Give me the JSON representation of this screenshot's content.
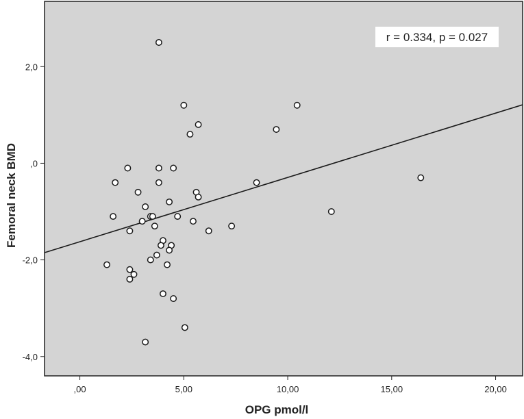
{
  "chart_data": {
    "type": "scatter",
    "xlabel": "OPG pmol/l",
    "ylabel": "Femoral neck BMD",
    "xlim": [
      -1.7,
      21.3
    ],
    "ylim": [
      -4.4,
      3.35
    ],
    "x_ticks": [
      {
        "value": 0,
        "label": ",00"
      },
      {
        "value": 5,
        "label": "5,00"
      },
      {
        "value": 10,
        "label": "10,00"
      },
      {
        "value": 15,
        "label": "15,00"
      },
      {
        "value": 20,
        "label": "20,00"
      }
    ],
    "y_ticks": [
      {
        "value": 2,
        "label": "2,0"
      },
      {
        "value": 0,
        "label": ",0"
      },
      {
        "value": -2,
        "label": "-2,0"
      },
      {
        "value": -4,
        "label": "-4,0"
      }
    ],
    "annotation": "r = 0.334, p = 0.027",
    "fit_line": {
      "x": [
        -1.7,
        21.3
      ],
      "y": [
        -1.85,
        1.21
      ]
    },
    "points": [
      {
        "x": 3.8,
        "y": 2.5
      },
      {
        "x": 5.0,
        "y": 1.2
      },
      {
        "x": 10.45,
        "y": 1.2
      },
      {
        "x": 5.7,
        "y": 0.8
      },
      {
        "x": 9.45,
        "y": 0.7
      },
      {
        "x": 5.3,
        "y": 0.6
      },
      {
        "x": 2.3,
        "y": -0.1
      },
      {
        "x": 3.8,
        "y": -0.1
      },
      {
        "x": 4.5,
        "y": -0.1
      },
      {
        "x": 16.4,
        "y": -0.3
      },
      {
        "x": 1.7,
        "y": -0.4
      },
      {
        "x": 3.8,
        "y": -0.4
      },
      {
        "x": 8.5,
        "y": -0.4
      },
      {
        "x": 2.8,
        "y": -0.6
      },
      {
        "x": 5.6,
        "y": -0.6
      },
      {
        "x": 5.7,
        "y": -0.7
      },
      {
        "x": 4.3,
        "y": -0.8
      },
      {
        "x": 3.15,
        "y": -0.9
      },
      {
        "x": 12.1,
        "y": -1.0
      },
      {
        "x": 1.6,
        "y": -1.1
      },
      {
        "x": 3.4,
        "y": -1.1
      },
      {
        "x": 3.5,
        "y": -1.1
      },
      {
        "x": 4.7,
        "y": -1.1
      },
      {
        "x": 3.0,
        "y": -1.2
      },
      {
        "x": 5.45,
        "y": -1.2
      },
      {
        "x": 3.6,
        "y": -1.3
      },
      {
        "x": 7.3,
        "y": -1.3
      },
      {
        "x": 2.4,
        "y": -1.4
      },
      {
        "x": 6.2,
        "y": -1.4
      },
      {
        "x": 4.0,
        "y": -1.6
      },
      {
        "x": 3.9,
        "y": -1.7
      },
      {
        "x": 4.4,
        "y": -1.7
      },
      {
        "x": 4.3,
        "y": -1.8
      },
      {
        "x": 3.7,
        "y": -1.9
      },
      {
        "x": 3.4,
        "y": -2.0
      },
      {
        "x": 1.3,
        "y": -2.1
      },
      {
        "x": 4.2,
        "y": -2.1
      },
      {
        "x": 2.4,
        "y": -2.2
      },
      {
        "x": 2.6,
        "y": -2.3
      },
      {
        "x": 2.4,
        "y": -2.4
      },
      {
        "x": 4.0,
        "y": -2.7
      },
      {
        "x": 4.5,
        "y": -2.8
      },
      {
        "x": 5.05,
        "y": -3.4
      },
      {
        "x": 3.15,
        "y": -3.7
      }
    ],
    "grid": false,
    "legend": "none",
    "colors": {
      "plot_background": "#d4d4d4",
      "page_background": "#ffffff",
      "marker_fill": "#ffffff",
      "marker_stroke": "#1a1a1a",
      "line": "#1a1a1a",
      "annotation_box": "#ffffff"
    }
  }
}
